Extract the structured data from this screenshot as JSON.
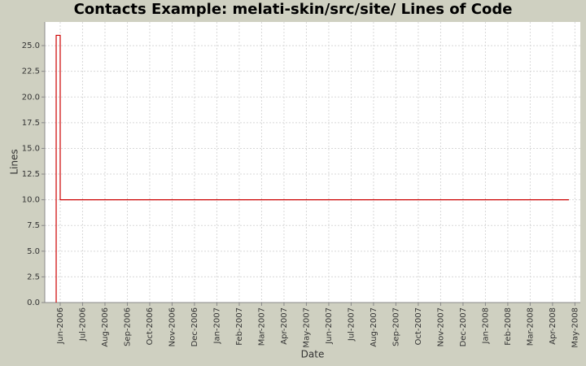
{
  "chart_data": {
    "type": "line",
    "title": "Contacts Example: melati-skin/src/site/ Lines of Code",
    "x_label": "Date",
    "y_label": "Lines",
    "series": [
      {
        "name": "Lines",
        "color": "#cc0000",
        "x": [
          4.82,
          4.82,
          5.0,
          5.0,
          27.73
        ],
        "values": [
          0,
          26,
          26,
          10,
          10
        ]
      }
    ],
    "xlim": [
      4.31,
      28.24
    ],
    "xticks": [
      {
        "value": 5,
        "label": "Jun-2006"
      },
      {
        "value": 6,
        "label": "Jul-2006"
      },
      {
        "value": 7,
        "label": "Aug-2006"
      },
      {
        "value": 8,
        "label": "Sep-2006"
      },
      {
        "value": 9,
        "label": "Oct-2006"
      },
      {
        "value": 10,
        "label": "Nov-2006"
      },
      {
        "value": 11,
        "label": "Dec-2006"
      },
      {
        "value": 12,
        "label": "Jan-2007"
      },
      {
        "value": 13,
        "label": "Feb-2007"
      },
      {
        "value": 14,
        "label": "Mar-2007"
      },
      {
        "value": 15,
        "label": "Apr-2007"
      },
      {
        "value": 16,
        "label": "May-2007"
      },
      {
        "value": 17,
        "label": "Jun-2007"
      },
      {
        "value": 18,
        "label": "Jul-2007"
      },
      {
        "value": 19,
        "label": "Aug-2007"
      },
      {
        "value": 20,
        "label": "Sep-2007"
      },
      {
        "value": 21,
        "label": "Oct-2007"
      },
      {
        "value": 22,
        "label": "Nov-2007"
      },
      {
        "value": 23,
        "label": "Dec-2007"
      },
      {
        "value": 24,
        "label": "Jan-2008"
      },
      {
        "value": 25,
        "label": "Feb-2008"
      },
      {
        "value": 26,
        "label": "Mar-2008"
      },
      {
        "value": 27,
        "label": "Apr-2008"
      },
      {
        "value": 28,
        "label": "May-2008"
      }
    ],
    "ylim": [
      0,
      27.3
    ],
    "yticks": [
      {
        "value": 0,
        "label": "0.0"
      },
      2.5,
      {
        "value": 5,
        "label": "5.0"
      },
      7.5,
      {
        "value": 10,
        "label": "10.0"
      },
      12.5,
      {
        "value": 15,
        "label": "15.0"
      },
      17.5,
      {
        "value": 20,
        "label": "20.0"
      },
      22.5,
      {
        "value": 25,
        "label": "25.0"
      }
    ],
    "grid": true
  }
}
